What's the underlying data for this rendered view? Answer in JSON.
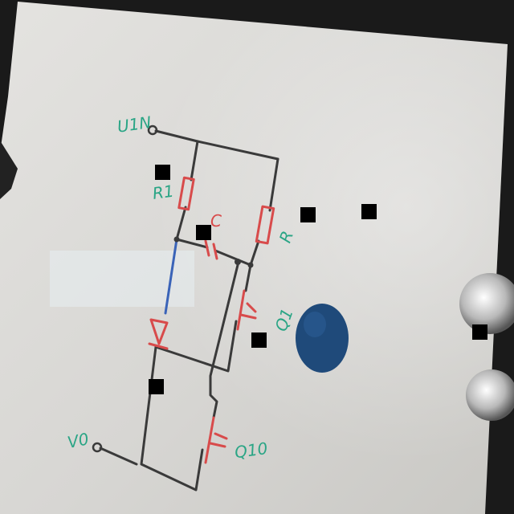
{
  "diagram": {
    "labels": {
      "input": "U1N",
      "r1": "R1",
      "r2": "R",
      "capacitor": "C",
      "q1": "Q1",
      "q2": "Q10",
      "output": "V0"
    }
  },
  "colors": {
    "whiteboard": "#dcdcda",
    "wire": "#3a3a3a",
    "component": "#d84b4b",
    "label": "#2aa585",
    "wire_blue": "#3a63b8",
    "magnet": "#1f4a7a",
    "frame": "#1a1a1a"
  },
  "icons": {
    "magnet": "round-magnet-icon",
    "redaction": "redaction-square"
  }
}
